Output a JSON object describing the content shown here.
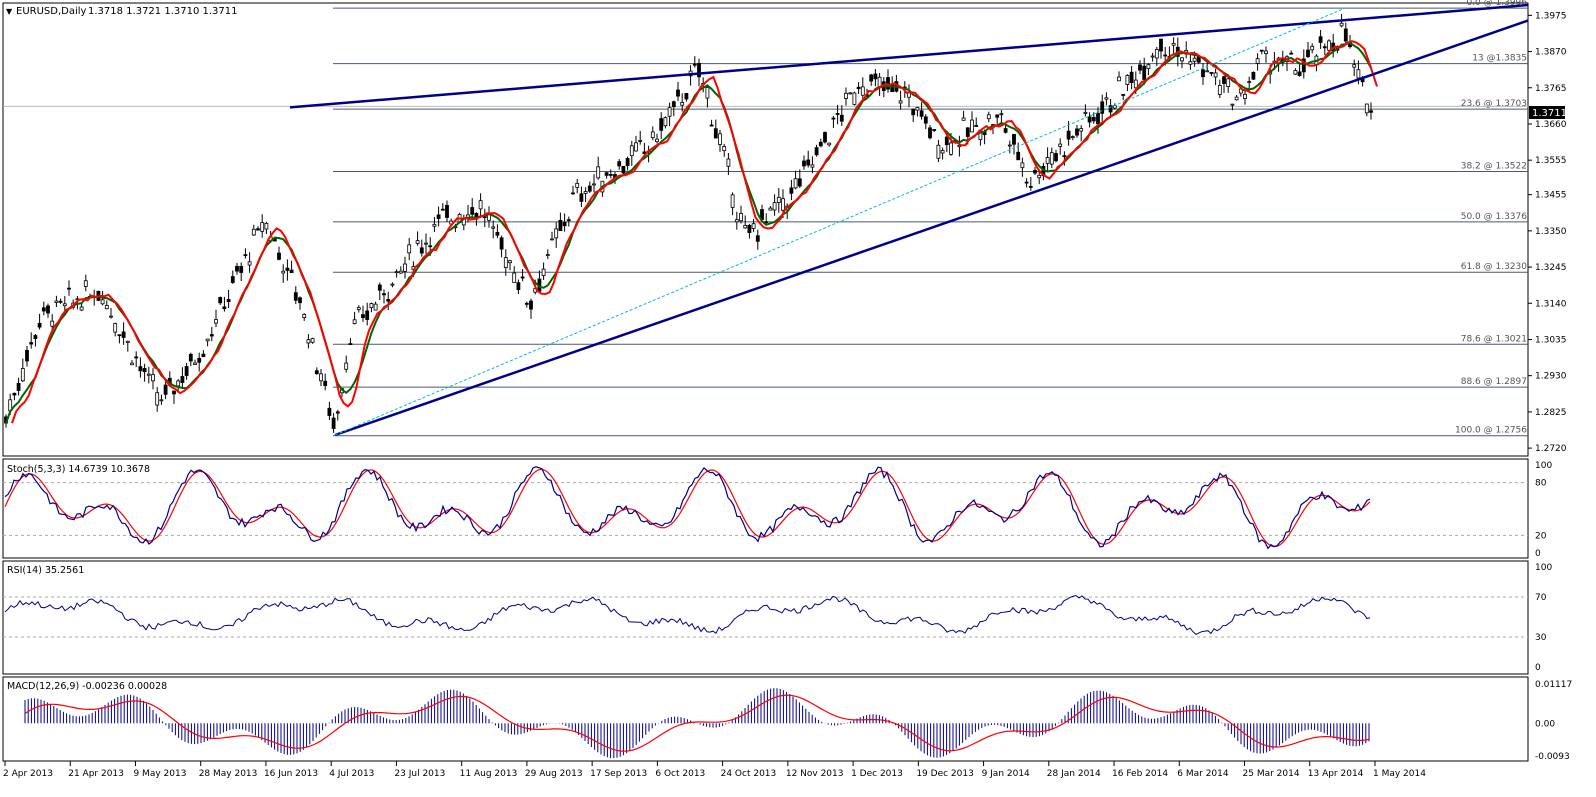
{
  "header": {
    "symbol": "EURUSD,Daily",
    "ohlc": "1.3718 1.3721 1.3710 1.3711"
  },
  "chart_data": {
    "type": "candlestick",
    "last_price": "1.3711",
    "y_ticks": [
      "1.3975",
      "1.3870",
      "1.3765",
      "1.3660",
      "1.3555",
      "1.3455",
      "1.3350",
      "1.3245",
      "1.3140",
      "1.3035",
      "1.2930",
      "1.2825",
      "1.2720"
    ],
    "x_ticks": [
      "2 Apr 2013",
      "21 Apr 2013",
      "9 May 2013",
      "28 May 2013",
      "16 Jun 2013",
      "4 Jul 2013",
      "23 Jul 2013",
      "11 Aug 2013",
      "29 Aug 2013",
      "17 Sep 2013",
      "6 Oct 2013",
      "24 Oct 2013",
      "12 Nov 2013",
      "1 Dec 2013",
      "19 Dec 2013",
      "9 Jan 2014",
      "28 Jan 2014",
      "16 Feb 2014",
      "6 Mar 2014",
      "25 Mar 2014",
      "13 Apr 2014",
      "1 May 2014"
    ],
    "fib_levels": [
      {
        "label": "0.0 @ 1.3996",
        "price": 1.3996
      },
      {
        "label": "13 @1.3835",
        "price": 1.3835
      },
      {
        "label": "23.6 @ 1.3703",
        "price": 1.3703
      },
      {
        "label": "38.2 @ 1.3522",
        "price": 1.3522
      },
      {
        "label": "50.0 @ 1.3376",
        "price": 1.3376
      },
      {
        "label": "61.8 @ 1.3230",
        "price": 1.323
      },
      {
        "label": "78.6 @ 1.3021",
        "price": 1.3021
      },
      {
        "label": "88.6 @ 1.2897",
        "price": 1.2897
      },
      {
        "label": "100.0 @ 1.2756",
        "price": 1.2756
      }
    ],
    "series_colors": {
      "candles": "#000000",
      "ma_fast": "#006400",
      "ma_slow": "#ff0000",
      "trendline": "#00008b",
      "fib": "#4a5a6a"
    }
  },
  "stoch": {
    "title": "Stoch(5,3,3) 14.6739 10.3678",
    "levels": [
      "100",
      "80",
      "20",
      "0"
    ],
    "main_color": "#00008b",
    "signal_color": "#ff0000"
  },
  "rsi": {
    "title": "RSI(14) 35.2561",
    "levels": [
      "100",
      "70",
      "30",
      "0"
    ],
    "color": "#00008b"
  },
  "macd": {
    "title": "MACD(12,26,9) -0.00236 0.00028",
    "levels": [
      "0.01117",
      "0.00",
      "-0.0093"
    ],
    "hist_color": "#00008b",
    "signal_color": "#ff0000"
  }
}
